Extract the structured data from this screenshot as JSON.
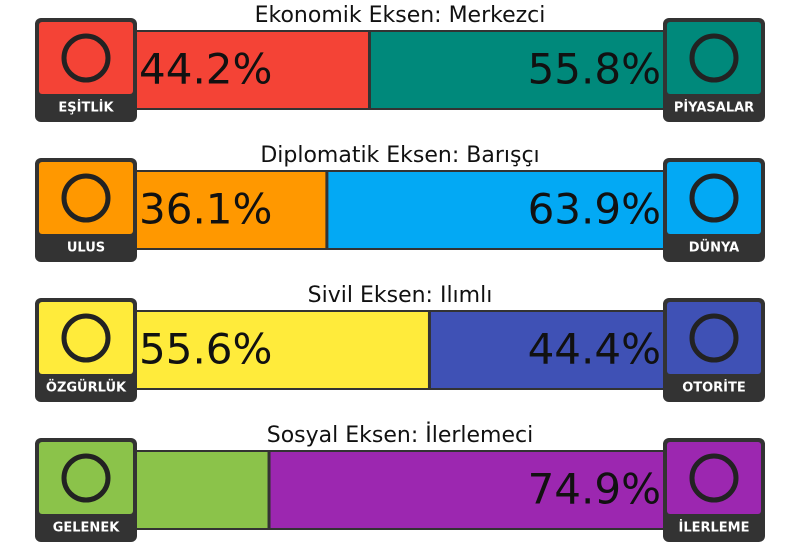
{
  "chart_data": [
    {
      "type": "bar",
      "title": "Ekonomik Eksen: Merkezci",
      "series": [
        {
          "name": "EŞİTLİK",
          "color": "#f44336",
          "values": [
            44.2
          ],
          "value_labels": [
            "44.2%"
          ]
        },
        {
          "name": "PİYASALAR",
          "color": "#00897b",
          "values": [
            55.8
          ],
          "value_labels": [
            "55.8%"
          ]
        }
      ]
    },
    {
      "type": "bar",
      "title": "Diplomatik Eksen: Barışçı",
      "series": [
        {
          "name": "ULUS",
          "color": "#ff9800",
          "values": [
            36.1
          ],
          "value_labels": [
            "36.1%"
          ]
        },
        {
          "name": "DÜNYA",
          "color": "#03a9f4",
          "values": [
            63.9
          ],
          "value_labels": [
            "63.9%"
          ]
        }
      ]
    },
    {
      "type": "bar",
      "title": "Sivil Eksen: Ilımlı",
      "series": [
        {
          "name": "ÖZGÜRLÜK",
          "color": "#ffeb3b",
          "values": [
            55.6
          ],
          "value_labels": [
            "55.6%"
          ]
        },
        {
          "name": "OTORİTE",
          "color": "#3f51b5",
          "values": [
            44.4
          ],
          "value_labels": [
            "44.4%"
          ]
        }
      ]
    },
    {
      "type": "bar",
      "title": "Sosyal Eksen: İlerlemeci",
      "series": [
        {
          "name": "GELENEK",
          "color": "#8bc34a",
          "values": [
            25.1
          ],
          "value_labels": [
            null
          ]
        },
        {
          "name": "İLERLEME",
          "color": "#9c27b0",
          "values": [
            74.9
          ],
          "value_labels": [
            "74.9%"
          ]
        }
      ]
    }
  ]
}
